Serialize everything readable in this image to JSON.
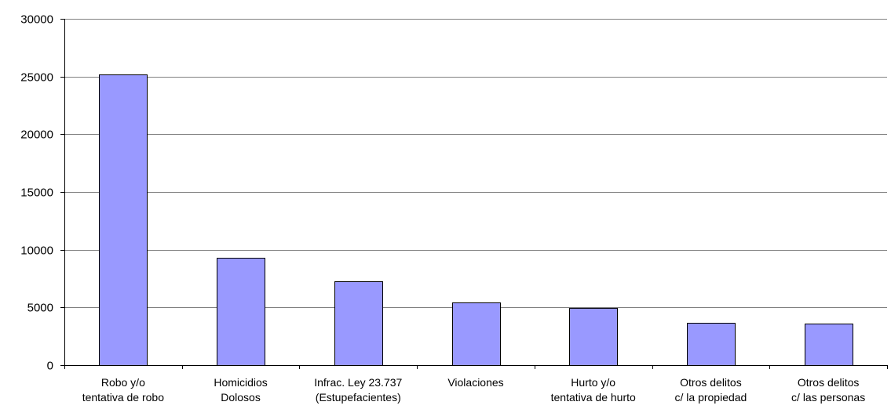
{
  "chart_data": {
    "type": "bar",
    "categories": [
      [
        "Robo y/o",
        "tentativa de robo"
      ],
      [
        "Homicidios",
        "Dolosos"
      ],
      [
        "Infrac. Ley 23.737",
        "(Estupefacientes)"
      ],
      [
        "Violaciones"
      ],
      [
        "Hurto y/o",
        "tentativa de hurto"
      ],
      [
        "Otros delitos",
        "c/ la propiedad"
      ],
      [
        "Otros delitos",
        "c/ las personas"
      ]
    ],
    "values": [
      25200,
      9300,
      7250,
      5400,
      4950,
      3650,
      3600
    ],
    "ylim": [
      0,
      30000
    ],
    "yticks": [
      0,
      5000,
      10000,
      15000,
      20000,
      25000,
      30000
    ],
    "title": "",
    "xlabel": "",
    "ylabel": "",
    "grid": true,
    "bar_color": "#9999ff",
    "bar_stroke": "#000000",
    "grid_color": "#808080"
  }
}
